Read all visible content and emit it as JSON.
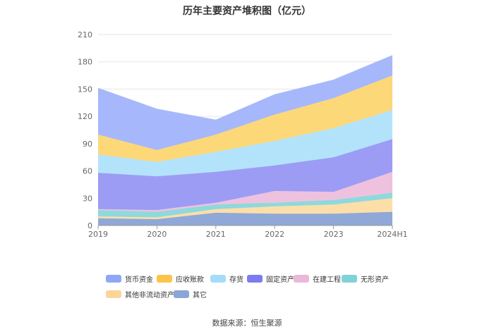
{
  "chart_data": {
    "type": "area",
    "stacked": true,
    "title": "历年主要资产堆积图（亿元）",
    "categories": [
      "2019",
      "2020",
      "2021",
      "2022",
      "2023",
      "2024H1"
    ],
    "y_ticks": [
      "0",
      "30",
      "60",
      "90",
      "120",
      "150",
      "180",
      "210"
    ],
    "ylim": [
      0,
      210
    ],
    "grid": true,
    "legend_position": "bottom",
    "series": [
      {
        "name": "其它",
        "color": "#8fa8d8",
        "values": [
          8,
          7,
          14,
          13,
          13,
          15
        ]
      },
      {
        "name": "其他非流动资产",
        "color": "#fcdfa8",
        "values": [
          2,
          2,
          4,
          8,
          10,
          15
        ]
      },
      {
        "name": "无形资产",
        "color": "#8ed9dc",
        "values": [
          7,
          6,
          5,
          4,
          5,
          6
        ]
      },
      {
        "name": "在建工程",
        "color": "#eec2df",
        "values": [
          1,
          2,
          2,
          13,
          9,
          23
        ]
      },
      {
        "name": "固定资产",
        "color": "#9c9cf5",
        "values": [
          40,
          37,
          34,
          28,
          38,
          36
        ]
      },
      {
        "name": "存货",
        "color": "#b3e3fb",
        "values": [
          20,
          16,
          22,
          27,
          32,
          32
        ]
      },
      {
        "name": "应收账款",
        "color": "#fdd878",
        "values": [
          22,
          13,
          19,
          29,
          33,
          38
        ]
      },
      {
        "name": "货币资金",
        "color": "#a6b8fb",
        "values": [
          51,
          45,
          16,
          22,
          20,
          22
        ]
      }
    ]
  },
  "legend": [
    {
      "name": "货币资金",
      "color": "#8fa8f5"
    },
    {
      "name": "应收账款",
      "color": "#fbc44a"
    },
    {
      "name": "存货",
      "color": "#a6dcf9"
    },
    {
      "name": "固定资产",
      "color": "#7c7cf0"
    },
    {
      "name": "在建工程",
      "color": "#eab8d8"
    },
    {
      "name": "无形资产",
      "color": "#7fd3d6"
    },
    {
      "name": "其他非流动资产",
      "color": "#fcd59a"
    },
    {
      "name": "其它",
      "color": "#8aa6d6"
    }
  ],
  "source_text": "数据来源：恒生聚源"
}
